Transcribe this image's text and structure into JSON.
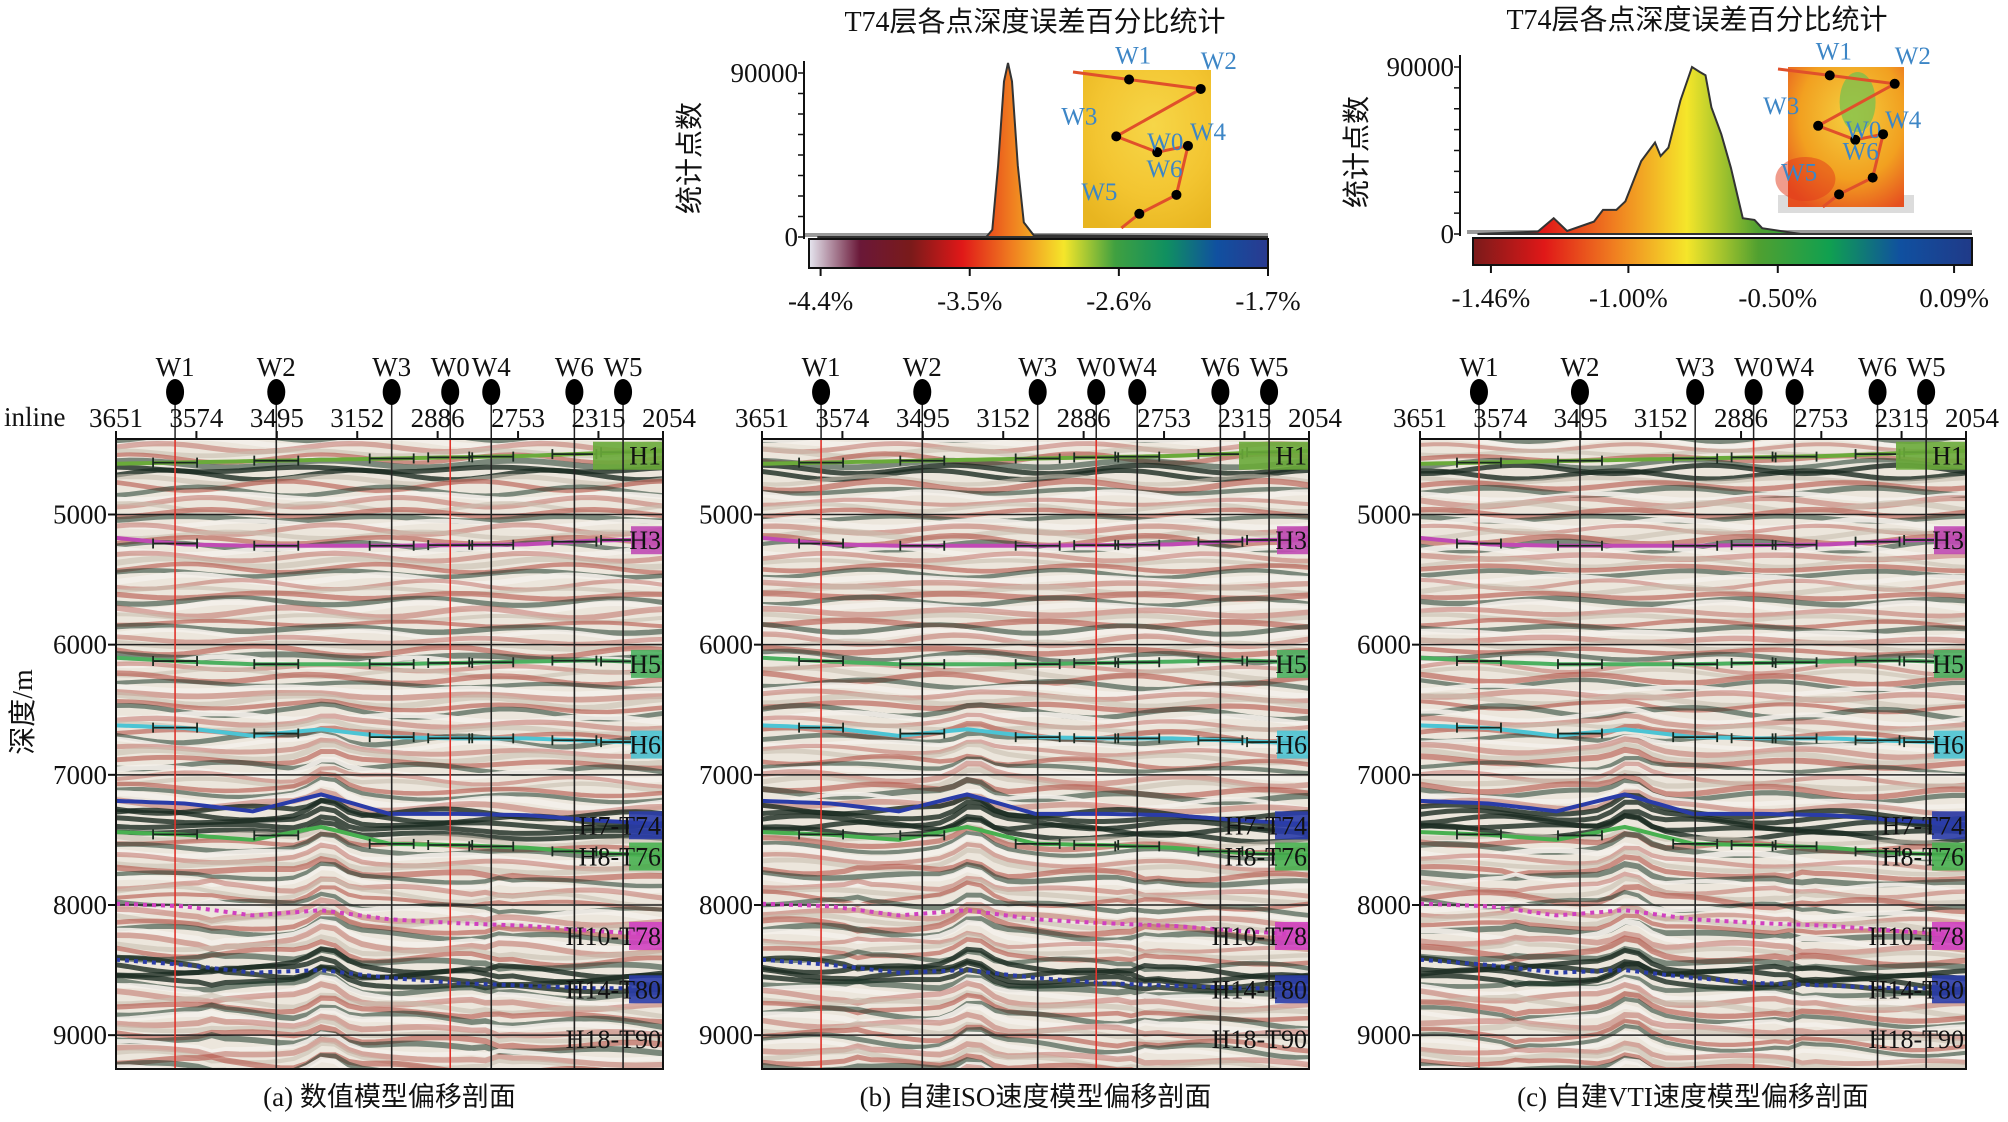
{
  "colors": {
    "colorbar_a": [
      "#e6e6f0",
      "#6a1838",
      "#7a1a1a",
      "#e01818",
      "#f08020",
      "#f5e62a",
      "#40a040",
      "#109060",
      "#1050a0",
      "#2a3a90"
    ],
    "colorbar_b": [
      "#7a1a1a",
      "#e01818",
      "#f08020",
      "#f5e62a",
      "#50a030",
      "#10a050",
      "#1050a0",
      "#203a88"
    ],
    "reflector_red": "#b0473c",
    "reflector_dark": "#1f3a2c",
    "section_background": "#ece6dc",
    "well_line": "#222222",
    "well_line_red": "#e0322a",
    "inset_label": "#3d86c6"
  },
  "chart_data": [
    {
      "type": "area",
      "title": "T74层各点深度误差百分比统计",
      "ylabel": "统计点数",
      "xlabel": "",
      "xlim": [
        -4.47,
        -1.7
      ],
      "ylim": [
        0,
        90000
      ],
      "y_ticks": [
        "0",
        "90000"
      ],
      "x_ticks": [
        {
          "value": -4.4,
          "label": "-4.4%"
        },
        {
          "value": -3.5,
          "label": "-3.5%"
        },
        {
          "value": -2.6,
          "label": "-2.6%"
        },
        {
          "value": -1.7,
          "label": "-1.7%"
        }
      ],
      "points": [
        [
          -4.42,
          0
        ],
        [
          -3.4,
          0
        ],
        [
          -3.364,
          4000
        ],
        [
          -3.329,
          39200
        ],
        [
          -3.293,
          85400
        ],
        [
          -3.269,
          95500
        ],
        [
          -3.245,
          85400
        ],
        [
          -3.21,
          39200
        ],
        [
          -3.174,
          8000
        ],
        [
          -3.114,
          1000
        ],
        [
          -1.7,
          0
        ]
      ],
      "inset_wells": [
        "W1",
        "W2",
        "W3",
        "W0",
        "W4",
        "W6",
        "W5"
      ]
    },
    {
      "type": "area",
      "title": "T74层各点深度误差百分比统计",
      "ylabel": "统计点数",
      "xlabel": "",
      "xlim": [
        -1.52,
        0.15
      ],
      "ylim": [
        0,
        90000
      ],
      "y_ticks": [
        "0",
        "90000"
      ],
      "x_ticks": [
        {
          "value": -1.46,
          "label": "-1.46%"
        },
        {
          "value": -1.0,
          "label": "-1.00%"
        },
        {
          "value": -0.5,
          "label": "-0.50%"
        },
        {
          "value": 0.09,
          "label": "0.09%"
        }
      ],
      "points": [
        [
          -1.505,
          0
        ],
        [
          -1.303,
          1300
        ],
        [
          -1.25,
          8500
        ],
        [
          -1.205,
          1600
        ],
        [
          -1.115,
          6700
        ],
        [
          -1.085,
          13000
        ],
        [
          -1.04,
          13000
        ],
        [
          -1.01,
          17600
        ],
        [
          -0.957,
          39300
        ],
        [
          -0.911,
          49300
        ],
        [
          -0.892,
          42000
        ],
        [
          -0.866,
          46500
        ],
        [
          -0.826,
          71900
        ],
        [
          -0.787,
          90000
        ],
        [
          -0.761,
          87300
        ],
        [
          -0.742,
          85500
        ],
        [
          -0.722,
          68300
        ],
        [
          -0.689,
          53800
        ],
        [
          -0.657,
          35700
        ],
        [
          -0.617,
          8500
        ],
        [
          -0.578,
          7600
        ],
        [
          -0.552,
          3100
        ],
        [
          -0.424,
          0
        ],
        [
          0.15,
          0
        ]
      ],
      "inset_wells": [
        "W1",
        "W2",
        "W3",
        "W0",
        "W4",
        "W6",
        "W5"
      ]
    }
  ],
  "sections": {
    "inline_label": "inline",
    "inline_ticks": [
      "3651",
      "3574",
      "3495",
      "3152",
      "2886",
      "2753",
      "2315",
      "2054"
    ],
    "wells": [
      {
        "name": "W1",
        "red_line": true
      },
      {
        "name": "W2",
        "red_line": false
      },
      {
        "name": "W3",
        "red_line": false
      },
      {
        "name": "W0",
        "red_line": true
      },
      {
        "name": "W4",
        "red_line": false
      },
      {
        "name": "W6",
        "red_line": false
      },
      {
        "name": "W5",
        "red_line": false
      }
    ],
    "depth_axis": {
      "title": "深度/m",
      "ticks": [
        "5000",
        "6000",
        "7000",
        "8000",
        "9000"
      ],
      "range_m": [
        4420,
        9260
      ]
    },
    "horizons": [
      {
        "name": "H1",
        "color": "#6aaa3a",
        "style": "solid",
        "depths_m": [
          4610,
          4600,
          4590,
          4580,
          4570,
          4560,
          4550,
          4530,
          4510
        ],
        "label_box": true
      },
      {
        "name": "H3",
        "color": "#c04ab4",
        "style": "solid",
        "depths_m": [
          5180,
          5230,
          5240,
          5240,
          5240,
          5235,
          5230,
          5200,
          5190
        ],
        "label_box": true
      },
      {
        "name": "H5",
        "color": "#4cb060",
        "style": "solid",
        "depths_m": [
          6100,
          6130,
          6150,
          6150,
          6150,
          6140,
          6130,
          6120,
          6140
        ],
        "label_box": true
      },
      {
        "name": "H6",
        "color": "#4cc4d4",
        "style": "solid",
        "depths_m": [
          6620,
          6640,
          6700,
          6650,
          6710,
          6720,
          6720,
          6740,
          6760
        ],
        "label_box": true
      },
      {
        "name": "H7-T74",
        "color": "#2a3ca8",
        "style": "solid",
        "depths_m": [
          7200,
          7220,
          7280,
          7150,
          7300,
          7300,
          7310,
          7350,
          7380
        ],
        "label_box": true
      },
      {
        "name": "H8-T76",
        "color": "#48b050",
        "style": "solid",
        "depths_m": [
          7440,
          7460,
          7500,
          7400,
          7530,
          7540,
          7560,
          7600,
          7620
        ],
        "label_box": true
      },
      {
        "name": "H10-T78",
        "color": "#d040c0",
        "style": "dotted",
        "depths_m": [
          7990,
          8010,
          8080,
          8040,
          8110,
          8140,
          8160,
          8200,
          8230
        ],
        "label_box": true
      },
      {
        "name": "H14-T80",
        "color": "#2a3ca8",
        "style": "dotted",
        "depths_m": [
          8420,
          8460,
          8520,
          8500,
          8560,
          8600,
          8620,
          8640,
          8640
        ],
        "label_box": true
      },
      {
        "name": "H18-T90",
        "color": "",
        "style": "none",
        "depths_m": [
          9020
        ],
        "label_box": false
      }
    ],
    "panels": [
      {
        "caption": "(a) 数值模型偏移剖面"
      },
      {
        "caption": "(b) 自建ISO速度模型偏移剖面"
      },
      {
        "caption": "(c) 自建VTI速度模型偏移剖面"
      }
    ]
  }
}
